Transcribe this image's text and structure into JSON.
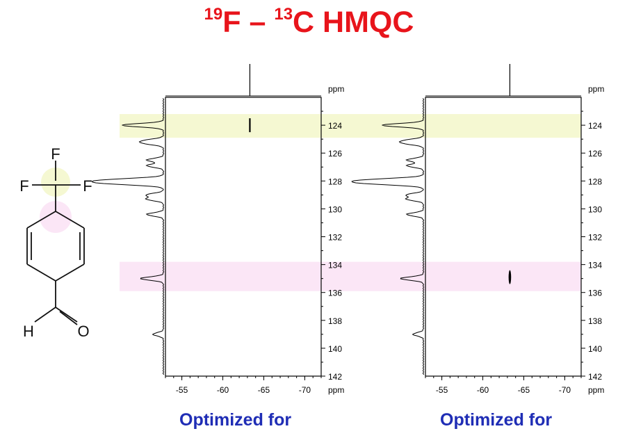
{
  "title": {
    "f_iso": "19",
    "f_sym": "F",
    "dash": " – ",
    "c_iso": "13",
    "c_sym": "C",
    "rest": " HMQC"
  },
  "molecule": {
    "atoms": [
      "F",
      "F",
      "F",
      "H",
      "O"
    ]
  },
  "colors": {
    "title": "#e8141b",
    "caption": "#1f2db5",
    "band_yellow": "#f5f8d2",
    "band_pink": "#fbe6f6"
  },
  "chart_data": [
    {
      "type": "scatter",
      "title": "",
      "xlabel": "ppm",
      "ylabel": "ppm",
      "xlim": [
        -53,
        -72
      ],
      "ylim": [
        122,
        142
      ],
      "x_ticks": [
        "-55",
        "-60",
        "-65",
        "-70"
      ],
      "y_ticks": [
        "124",
        "126",
        "128",
        "130",
        "132",
        "134",
        "136",
        "138",
        "140",
        "142"
      ],
      "caption": "Optimized for",
      "bands_ppm": [
        [
          123.2,
          124.9
        ],
        [
          133.8,
          135.9
        ]
      ],
      "cross_peaks": [
        {
          "x": -63.3,
          "y": 124.0
        }
      ],
      "f19_projection_peak": -63.3
    },
    {
      "type": "scatter",
      "title": "",
      "xlabel": "ppm",
      "ylabel": "ppm",
      "xlim": [
        -53,
        -72
      ],
      "ylim": [
        122,
        142
      ],
      "x_ticks": [
        "-55",
        "-60",
        "-65",
        "-70"
      ],
      "y_ticks": [
        "124",
        "126",
        "128",
        "130",
        "132",
        "134",
        "136",
        "138",
        "140",
        "142"
      ],
      "caption": "Optimized for",
      "bands_ppm": [
        [
          123.2,
          124.9
        ],
        [
          133.8,
          135.9
        ]
      ],
      "cross_peaks": [
        {
          "x": -63.3,
          "y": 134.9
        }
      ],
      "f19_projection_peak": -63.3
    }
  ]
}
